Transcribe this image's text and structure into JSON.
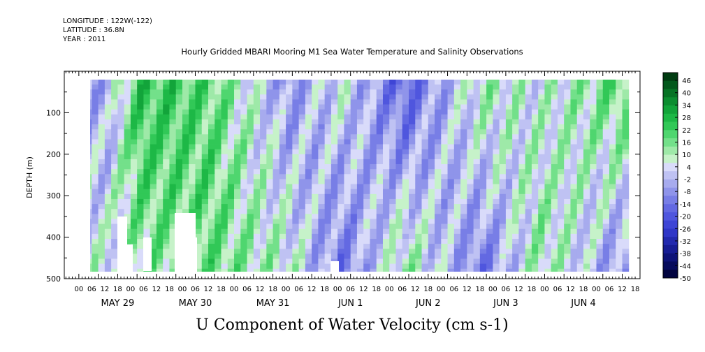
{
  "header": {
    "longitude": "LONGITUDE : 122W(-122)",
    "latitude": "LATITUDE : 36.8N",
    "year": "YEAR : 2011"
  },
  "chart_data": {
    "type": "heatmap",
    "title": "Hourly Gridded MBARI Mooring M1 Sea Water Temperature and Salinity Observations",
    "xlabel": "U Component of Water Velocity (cm s-1)",
    "ylabel": "DEPTH (m)",
    "ylim": [
      500,
      0
    ],
    "yticks": [
      100,
      200,
      300,
      400,
      500
    ],
    "x_hour_labels": [
      "00",
      "06",
      "12",
      "18",
      "00",
      "06",
      "12",
      "18",
      "00",
      "06",
      "12",
      "18",
      "00",
      "06",
      "12",
      "18",
      "00",
      "06",
      "12",
      "18",
      "00",
      "06",
      "12",
      "18",
      "00",
      "06",
      "12",
      "18",
      "00",
      "06",
      "12",
      "18",
      "00",
      "06",
      "12",
      "18",
      "00",
      "06",
      "12",
      "18",
      "00",
      "06",
      "12",
      "18"
    ],
    "x_day_labels": [
      "MAY 29",
      "MAY 30",
      "MAY 31",
      "JUN  1",
      "JUN  2",
      "JUN  3",
      "JUN  4"
    ],
    "colorbar": {
      "labels": [
        46,
        40,
        34,
        28,
        22,
        16,
        10,
        4,
        -2,
        -8,
        -14,
        -20,
        -26,
        -32,
        -38,
        -44,
        -50
      ],
      "colors": [
        "#013d12",
        "#03581c",
        "#077325",
        "#0c8d30",
        "#12a43a",
        "#1db846",
        "#31c857",
        "#4fd66f",
        "#73e08a",
        "#9ee9a8",
        "#c6f2c9",
        "#d9dbfa",
        "#bfc2f3",
        "#a7abee",
        "#8f94ea",
        "#787ee6",
        "#6369e2",
        "#4f56de",
        "#3e45d6",
        "#2f36c7",
        "#2229ae",
        "#171d94",
        "#0e1378",
        "#070b5c",
        "#020440"
      ]
    },
    "data_columns": [
      {
        "time_h": 8,
        "u_surface": -6,
        "u_deep": 4
      },
      {
        "time_h": 18,
        "u_surface": 22,
        "u_deep": 10
      },
      {
        "time_h": 40,
        "u_surface": 16,
        "u_deep": 14
      },
      {
        "time_h": 64,
        "u_surface": -10,
        "u_deep": 6
      },
      {
        "time_h": 80,
        "u_surface": 4,
        "u_deep": -14
      },
      {
        "time_h": 100,
        "u_surface": -20,
        "u_deep": 10
      },
      {
        "time_h": 124,
        "u_surface": 10,
        "u_deep": -14
      },
      {
        "time_h": 142,
        "u_surface": 2,
        "u_deep": 10
      },
      {
        "time_h": 164,
        "u_surface": 16,
        "u_deep": -8
      }
    ]
  }
}
